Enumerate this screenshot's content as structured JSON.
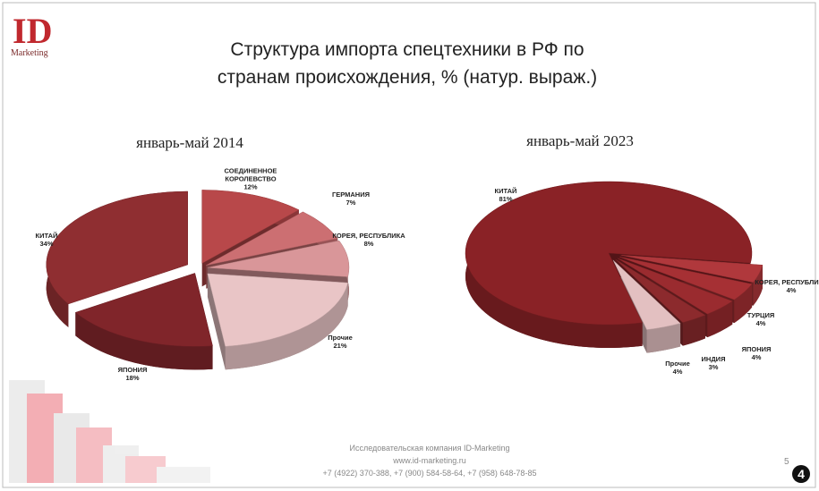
{
  "slide": {
    "title": "Структура импорта спецтехники в РФ по странам происхождения, % (натур. выраж.)",
    "logo": "Marketing",
    "footer": [
      "Исследовательская компания ID-Marketing",
      "www.id-marketing.ru",
      "+7 (4922) 370-388, +7 (900) 584-58-64, +7 (958) 648-78-85"
    ],
    "page": "5",
    "badge": "4"
  },
  "chart_data": [
    {
      "type": "pie",
      "title": "январь-май 2014",
      "categories": [
        "СОЕДИНЕННОЕ КОРОЛЕВСТВО",
        "ГЕРМАНИЯ",
        "КОРЕЯ, РЕСПУБЛИКА",
        "Прочие",
        "ЯПОНИЯ",
        "КИТАЙ"
      ],
      "values": [
        12,
        7,
        8,
        21,
        18,
        34
      ],
      "value_labels": [
        "12%",
        "7%",
        "8%",
        "21%",
        "18%",
        "34%"
      ],
      "colors": [
        "#b8484a",
        "#cc6f72",
        "#d99699",
        "#e9c5c6",
        "#80252a",
        "#8f2e31"
      ]
    },
    {
      "type": "pie",
      "title": "январь-май 2023",
      "categories": [
        "КОРЕЯ, РЕСПУБЛИКА",
        "ТУРЦИЯ",
        "ЯПОНИЯ",
        "ИНДИЯ",
        "Прочие",
        "КИТАЙ"
      ],
      "values": [
        4,
        4,
        4,
        3,
        4,
        81
      ],
      "value_labels": [
        "4%",
        "4%",
        "4%",
        "3%",
        "4%",
        "81%"
      ],
      "colors": [
        "#b0383c",
        "#a63034",
        "#9a2b2f",
        "#8c2a2d",
        "#e3c0c1",
        "#8a2226"
      ]
    }
  ]
}
